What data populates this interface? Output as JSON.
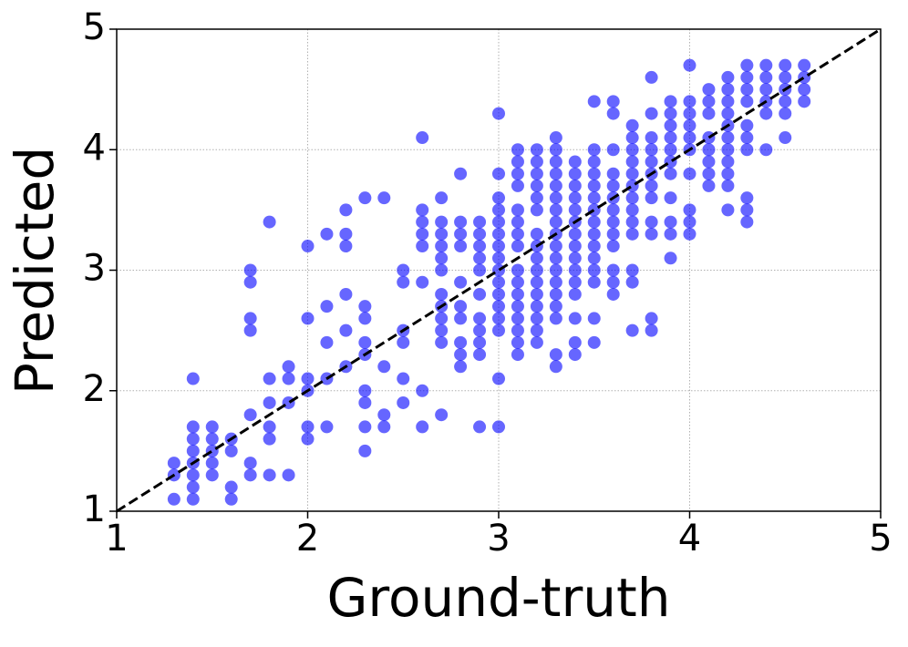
{
  "chart_data": {
    "type": "scatter",
    "x_label": "Ground-truth",
    "y_label": "Predicted",
    "xlim": [
      1,
      5
    ],
    "ylim": [
      1,
      5
    ],
    "xticks": [
      1,
      2,
      3,
      4,
      5
    ],
    "yticks": [
      1,
      2,
      3,
      4,
      5
    ],
    "grid": true,
    "diagonal": true,
    "series": [
      {
        "color": "#0000ff",
        "x": [
          1.3,
          1.3,
          1.3,
          1.4,
          1.4,
          1.4,
          1.4,
          1.4,
          1.4,
          1.4,
          1.4,
          1.5,
          1.5,
          1.5,
          1.5,
          1.5,
          1.6,
          1.6,
          1.6,
          1.6,
          1.7,
          1.7,
          1.7,
          1.7,
          1.7,
          1.7,
          1.7,
          1.8,
          1.8,
          1.8,
          1.8,
          1.8,
          1.8,
          1.9,
          1.9,
          1.9,
          1.9,
          2,
          2,
          2,
          2,
          2,
          2,
          2.1,
          2.1,
          2.1,
          2.1,
          2.1,
          2.2,
          2.2,
          2.2,
          2.2,
          2.2,
          2.2,
          2.3,
          2.3,
          2.3,
          2.3,
          2.3,
          2.3,
          2.3,
          2.3,
          2.3,
          2.4,
          2.4,
          2.4,
          2.4,
          2.5,
          2.5,
          2.5,
          2.5,
          2.5,
          2.5,
          2.6,
          2.6,
          2.6,
          2.6,
          2.6,
          2.6,
          2.6,
          2.6,
          2.7,
          2.7,
          2.7,
          2.7,
          2.7,
          2.7,
          2.7,
          2.7,
          2.7,
          2.7,
          2.7,
          2.7,
          2.8,
          2.8,
          2.8,
          2.8,
          2.8,
          2.8,
          2.8,
          2.8,
          2.8,
          2.8,
          2.9,
          2.9,
          2.9,
          2.9,
          2.9,
          2.9,
          2.9,
          2.9,
          2.9,
          2.9,
          2.9,
          3,
          3,
          3,
          3,
          3,
          3,
          3,
          3,
          3,
          3,
          3,
          3,
          3,
          3,
          3,
          3,
          3.1,
          3.1,
          3.1,
          3.1,
          3.1,
          3.1,
          3.1,
          3.1,
          3.1,
          3.1,
          3.1,
          3.1,
          3.1,
          3.1,
          3.1,
          3.1,
          3.2,
          3.2,
          3.2,
          3.2,
          3.2,
          3.2,
          3.2,
          3.2,
          3.2,
          3.2,
          3.2,
          3.2,
          3.2,
          3.2,
          3.2,
          3.2,
          3.3,
          3.3,
          3.3,
          3.3,
          3.3,
          3.3,
          3.3,
          3.3,
          3.3,
          3.3,
          3.3,
          3.3,
          3.3,
          3.3,
          3.3,
          3.3,
          3.3,
          3.3,
          3.4,
          3.4,
          3.4,
          3.4,
          3.4,
          3.4,
          3.4,
          3.4,
          3.4,
          3.4,
          3.4,
          3.4,
          3.4,
          3.4,
          3.4,
          3.5,
          3.5,
          3.5,
          3.5,
          3.5,
          3.5,
          3.5,
          3.5,
          3.5,
          3.5,
          3.5,
          3.5,
          3.5,
          3.5,
          3.5,
          3.6,
          3.6,
          3.6,
          3.6,
          3.6,
          3.6,
          3.6,
          3.6,
          3.6,
          3.6,
          3.6,
          3.6,
          3.6,
          3.7,
          3.7,
          3.7,
          3.7,
          3.7,
          3.7,
          3.7,
          3.7,
          3.7,
          3.7,
          3.7,
          3.7,
          3.7,
          3.8,
          3.8,
          3.8,
          3.8,
          3.8,
          3.8,
          3.8,
          3.8,
          3.8,
          3.8,
          3.8,
          3.8,
          3.9,
          3.9,
          3.9,
          3.9,
          3.9,
          3.9,
          3.9,
          3.9,
          3.9,
          3.9,
          3.9,
          4,
          4,
          4,
          4,
          4,
          4,
          4,
          4,
          4,
          4,
          4.1,
          4.1,
          4.1,
          4.1,
          4.1,
          4.1,
          4.1,
          4.1,
          4.2,
          4.2,
          4.2,
          4.2,
          4.2,
          4.2,
          4.2,
          4.2,
          4.2,
          4.2,
          4.2,
          4.3,
          4.3,
          4.3,
          4.3,
          4.3,
          4.3,
          4.3,
          4.3,
          4.3,
          4.3,
          4.4,
          4.4,
          4.4,
          4.4,
          4.4,
          4.4,
          4.5,
          4.5,
          4.5,
          4.5,
          4.5,
          4.5,
          4.6,
          4.6,
          4.6,
          4.6
        ],
        "values": [
          1.1,
          1.3,
          1.4,
          1.1,
          1.2,
          1.3,
          1.4,
          1.5,
          1.6,
          1.7,
          2.1,
          1.3,
          1.4,
          1.5,
          1.6,
          1.7,
          1.1,
          1.2,
          1.5,
          1.6,
          1.3,
          1.4,
          1.8,
          2.5,
          2.6,
          2.9,
          3,
          1.3,
          1.6,
          1.7,
          1.9,
          2.1,
          3.4,
          1.3,
          1.9,
          2.1,
          2.2,
          1.6,
          1.7,
          2,
          2.1,
          2.6,
          3.2,
          1.7,
          2.1,
          2.4,
          2.7,
          3.3,
          2.2,
          2.5,
          2.8,
          3.2,
          3.3,
          3.5,
          1.5,
          1.7,
          1.9,
          2,
          2.3,
          2.4,
          2.6,
          2.7,
          3.6,
          1.7,
          1.8,
          2.2,
          3.6,
          1.9,
          2.1,
          2.4,
          2.5,
          2.9,
          3,
          1.7,
          2,
          2.9,
          3.2,
          3.3,
          3.4,
          3.5,
          4.1,
          1.8,
          2.4,
          2.5,
          2.6,
          2.7,
          2.8,
          3,
          3.1,
          3.2,
          3.3,
          3.4,
          3.6,
          2.2,
          2.3,
          2.4,
          2.6,
          2.7,
          2.9,
          3.2,
          3.3,
          3.4,
          3.8,
          1.7,
          2.3,
          2.4,
          2.5,
          2.6,
          2.8,
          3,
          3.1,
          3.2,
          3.3,
          3.4,
          1.7,
          2.1,
          2.5,
          2.6,
          2.7,
          2.8,
          2.9,
          3,
          3.1,
          3.2,
          3.3,
          3.4,
          3.5,
          3.6,
          3.8,
          4.3,
          2.3,
          2.4,
          2.5,
          2.6,
          2.7,
          2.8,
          2.9,
          3,
          3.2,
          3.3,
          3.4,
          3.5,
          3.7,
          3.8,
          3.9,
          4,
          2.4,
          2.5,
          2.6,
          2.7,
          2.8,
          2.9,
          3,
          3.1,
          3.2,
          3.3,
          3.5,
          3.6,
          3.7,
          3.8,
          3.9,
          4,
          2.2,
          2.3,
          2.6,
          2.7,
          2.8,
          2.9,
          3,
          3.1,
          3.2,
          3.3,
          3.4,
          3.5,
          3.6,
          3.7,
          3.8,
          3.9,
          4,
          4.1,
          2.3,
          2.4,
          2.6,
          2.8,
          2.9,
          3,
          3.1,
          3.2,
          3.3,
          3.4,
          3.5,
          3.6,
          3.7,
          3.8,
          3.9,
          2.4,
          2.6,
          2.9,
          3,
          3.1,
          3.2,
          3.3,
          3.4,
          3.5,
          3.6,
          3.7,
          3.8,
          3.9,
          4,
          4.4,
          2.8,
          2.9,
          3,
          3.2,
          3.3,
          3.4,
          3.5,
          3.6,
          3.7,
          3.8,
          4,
          4.3,
          4.4,
          2.5,
          2.9,
          3,
          3.3,
          3.4,
          3.5,
          3.6,
          3.7,
          3.8,
          3.9,
          4,
          4.1,
          4.2,
          2.5,
          2.6,
          3.3,
          3.4,
          3.6,
          3.7,
          3.8,
          3.9,
          4,
          4.1,
          4.3,
          4.6,
          3.1,
          3.3,
          3.4,
          3.6,
          3.8,
          3.9,
          4,
          4.1,
          4.2,
          4.3,
          4.4,
          3.3,
          3.4,
          3.5,
          3.8,
          4,
          4.1,
          4.2,
          4.3,
          4.4,
          4.7,
          3.7,
          3.8,
          3.9,
          4,
          4.1,
          4.3,
          4.4,
          4.5,
          3.5,
          3.7,
          3.8,
          3.9,
          4,
          4.1,
          4.2,
          4.3,
          4.4,
          4.5,
          4.6,
          3.4,
          3.5,
          3.6,
          4,
          4.1,
          4.2,
          4.4,
          4.5,
          4.6,
          4.7,
          4,
          4.3,
          4.4,
          4.5,
          4.6,
          4.7,
          4.1,
          4.3,
          4.4,
          4.5,
          4.6,
          4.7,
          4.4,
          4.5,
          4.6,
          4.7
        ]
      }
    ]
  }
}
